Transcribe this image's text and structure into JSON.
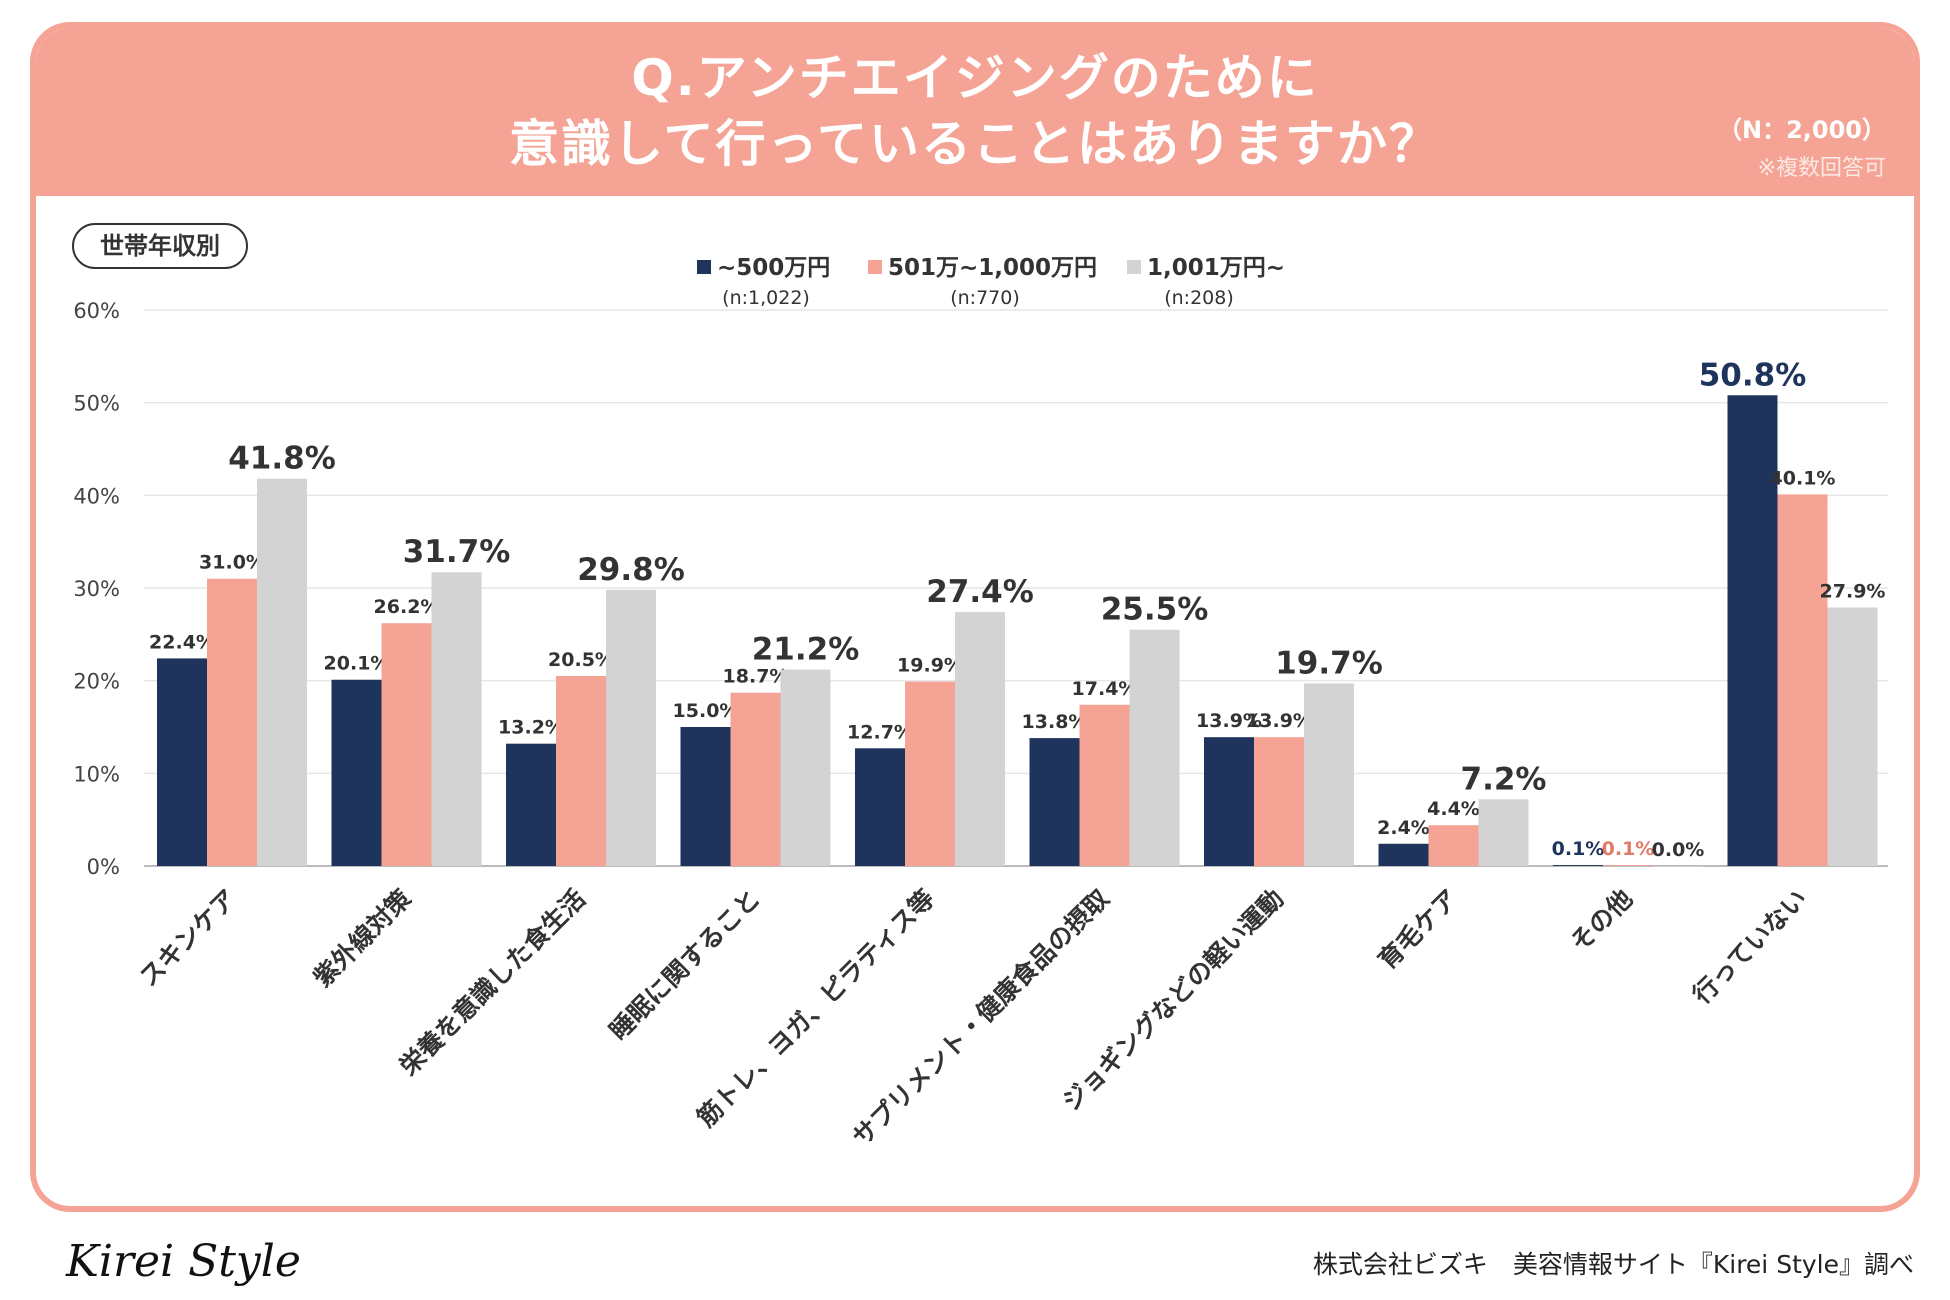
{
  "header": {
    "title_line1": "Q.アンチエイジングのために",
    "title_line2": "意識して行っていることはありますか？",
    "sample_size": "（N：2,000）",
    "note": "※複数回答可"
  },
  "segment_label": "世帯年収別",
  "footer": {
    "logo": "Kirei Style",
    "credit": "株式会社ビズキ　美容情報サイト『Kirei Style』調べ"
  },
  "colors": {
    "series1": "#1f345c",
    "series2": "#f4a394",
    "series3": "#d3d3d3",
    "header": "#f4a394"
  },
  "chart_data": {
    "type": "bar",
    "title": "Q.アンチエイジングのために意識して行っていることはありますか？",
    "ylim": [
      0,
      60
    ],
    "yticks": [
      0,
      10,
      20,
      30,
      40,
      50,
      60
    ],
    "ytick_labels": [
      "0%",
      "10%",
      "20%",
      "30%",
      "40%",
      "50%",
      "60%"
    ],
    "grid": true,
    "legend_position": "top-center",
    "categories": [
      "スキンケア",
      "紫外線対策",
      "栄養を意識した食生活",
      "睡眠に関すること",
      "筋トレ、ヨガ、ピラティス等",
      "サプリメント・健康食品の摂取",
      "ジョギングなどの軽い運動",
      "育毛ケア",
      "その他",
      "行っていない"
    ],
    "series": [
      {
        "name": "~500万円",
        "n": "(n:1,022)",
        "values": [
          22.4,
          20.1,
          13.2,
          15.0,
          12.7,
          13.8,
          13.9,
          2.4,
          0.1,
          50.8
        ]
      },
      {
        "name": "501万~1,000万円",
        "n": "(n:770)",
        "values": [
          31.0,
          26.2,
          20.5,
          18.7,
          19.9,
          17.4,
          13.9,
          4.4,
          0.1,
          40.1
        ]
      },
      {
        "name": "1,001万円~",
        "n": "(n:208)",
        "values": [
          41.8,
          31.7,
          29.8,
          21.2,
          27.4,
          25.5,
          19.7,
          7.2,
          0.0,
          27.9
        ]
      }
    ],
    "highlighted_labels": [
      "41.8%",
      "31.7%",
      "29.8%",
      "21.2%",
      "27.4%",
      "25.5%",
      "19.7%",
      "7.2%",
      "50.8%"
    ]
  }
}
